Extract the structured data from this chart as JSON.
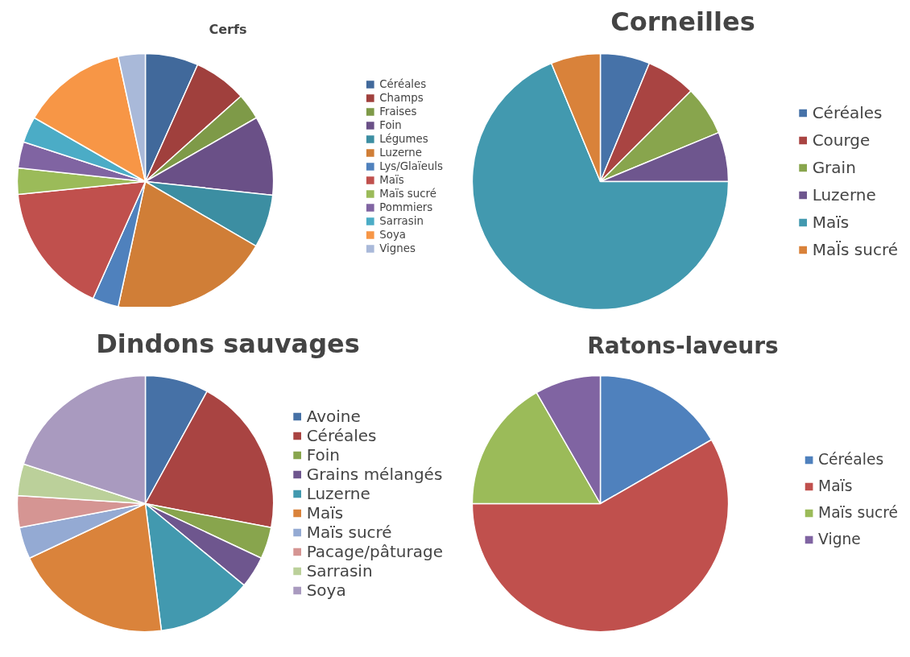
{
  "chart_data": [
    {
      "type": "pie",
      "title": "Cerfs",
      "legend": "right",
      "categories": [
        "Céréales",
        "Champs",
        "Fraises",
        "Foin",
        "Légumes",
        "Luzerne",
        "Lys/Glaïeuls",
        "Maïs",
        "Maïs sucré",
        "Pommiers",
        "Sarrasin",
        "Soya",
        "Vignes"
      ],
      "values": [
        6.7,
        6.7,
        3.3,
        10,
        6.7,
        20,
        3.3,
        16.7,
        3.3,
        3.3,
        3.3,
        13.3,
        3.4
      ],
      "colors": [
        "#41699b",
        "#a0403d",
        "#7e9a48",
        "#6a5087",
        "#3c8ea2",
        "#d07e37",
        "#4f81bd",
        "#c0504d",
        "#9bbb59",
        "#8064a2",
        "#4bacc6",
        "#f79646",
        "#a9b9d9"
      ]
    },
    {
      "type": "pie",
      "title": "Corneilles",
      "legend": "right",
      "categories": [
        "Céréales",
        "Courge",
        "Grain",
        "Luzerne",
        "Maïs",
        "MaÏs sucré"
      ],
      "values": [
        6.25,
        6.25,
        6.25,
        6.25,
        68.75,
        6.25
      ],
      "colors": [
        "#4672a8",
        "#a94442",
        "#88a54d",
        "#6e568e",
        "#4299af",
        "#d9823a"
      ]
    },
    {
      "type": "pie",
      "title": "Dindons sauvages",
      "legend": "right",
      "categories": [
        "Avoine",
        "Céréales",
        "Foin",
        "Grains mélangés",
        "Luzerne",
        "Maïs",
        "Maïs sucré",
        "Pacage/pâturage",
        "Sarrasin",
        "Soya"
      ],
      "values": [
        8,
        20,
        4,
        4,
        12,
        20,
        4,
        4,
        4,
        20
      ],
      "colors": [
        "#4671a6",
        "#a94442",
        "#88a54d",
        "#6e568e",
        "#4299af",
        "#da833b",
        "#94aad3",
        "#d59593",
        "#bbd09a",
        "#a99abf"
      ]
    },
    {
      "type": "pie",
      "title": "Ratons-laveurs",
      "legend": "right",
      "categories": [
        "Céréales",
        "Maïs",
        "Maïs sucré",
        "Vigne"
      ],
      "values": [
        16.7,
        58.3,
        16.7,
        8.3
      ],
      "colors": [
        "#4f81bd",
        "#c0504d",
        "#9bbb59",
        "#8064a2"
      ]
    }
  ]
}
